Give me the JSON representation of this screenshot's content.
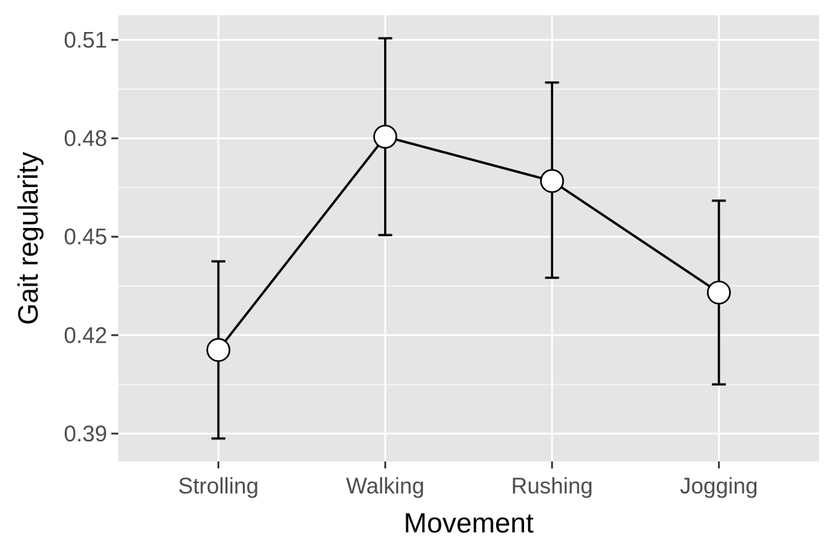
{
  "chart_data": {
    "type": "line",
    "title": "",
    "xlabel": "Movement",
    "ylabel": "Gait regularity",
    "categories": [
      "Strolling",
      "Walking",
      "Rushing",
      "Jogging"
    ],
    "y_ticks": [
      0.39,
      0.42,
      0.45,
      0.48,
      0.51
    ],
    "y_tick_labels": [
      "0.39",
      "0.42",
      "0.45",
      "0.48",
      "0.51"
    ],
    "ylim": [
      0.3815,
      0.5175
    ],
    "series": [
      {
        "values": [
          0.4155,
          0.4805,
          0.467,
          0.433
        ],
        "error_low": [
          0.3885,
          0.4505,
          0.4375,
          0.405
        ],
        "error_high": [
          0.4425,
          0.5105,
          0.497,
          0.461
        ]
      }
    ],
    "grid": true,
    "legend": "none",
    "colors": {
      "panel_background": "#e5e5e5",
      "grid": "#ffffff",
      "line": "#000000",
      "marker_fill": "#ffffff",
      "marker_stroke": "#000000",
      "tick_text": "#4d4d4d",
      "axis_title": "#000000"
    }
  }
}
